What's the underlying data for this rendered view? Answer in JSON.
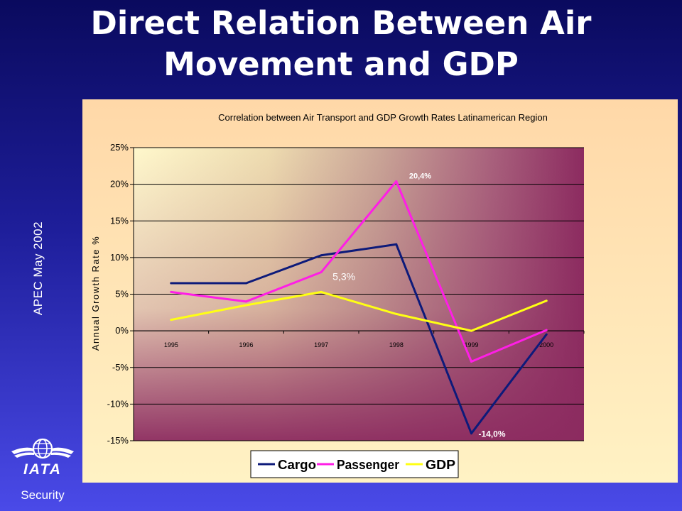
{
  "slide": {
    "title_line1": "Direct Relation Between Air",
    "title_line2": "Movement and GDP",
    "side_text": "APEC  May 2002",
    "footer_label": "Security",
    "logo_text": "IATA"
  },
  "colors": {
    "cargo": "#0d1a7a",
    "passenger": "#ff1ee6",
    "gdp": "#ffff14"
  },
  "chart_data": {
    "type": "line",
    "title": "Correlation between Air Transport and GDP Growth Rates Latinamerican Region",
    "xlabel": "",
    "ylabel": "Annual Growth Rate %",
    "x": [
      "1995",
      "1996",
      "1997",
      "1998",
      "1999",
      "2000"
    ],
    "ylim": [
      -15,
      25
    ],
    "yticks": [
      -15,
      -10,
      -5,
      0,
      5,
      10,
      15,
      20,
      25
    ],
    "y_unit": "%",
    "grid": true,
    "legend_position": "bottom",
    "series": [
      {
        "name": "Cargo",
        "values": [
          6.5,
          6.5,
          10.3,
          11.8,
          -14.0,
          -0.5
        ]
      },
      {
        "name": "Passenger",
        "values": [
          5.3,
          4.0,
          8.0,
          20.4,
          -4.2,
          0.1
        ]
      },
      {
        "name": "GDP",
        "values": [
          1.5,
          3.5,
          5.3,
          2.3,
          0.0,
          4.1
        ]
      }
    ],
    "annotations": [
      {
        "text": "20,4%",
        "series": "Passenger",
        "x": "1998",
        "y": 20.4
      },
      {
        "text": "5,3%",
        "series": "GDP",
        "x": "1997",
        "y": 5.3
      },
      {
        "text": "-14,0%",
        "series": "Cargo",
        "x": "1999",
        "y": -14.0
      }
    ]
  }
}
